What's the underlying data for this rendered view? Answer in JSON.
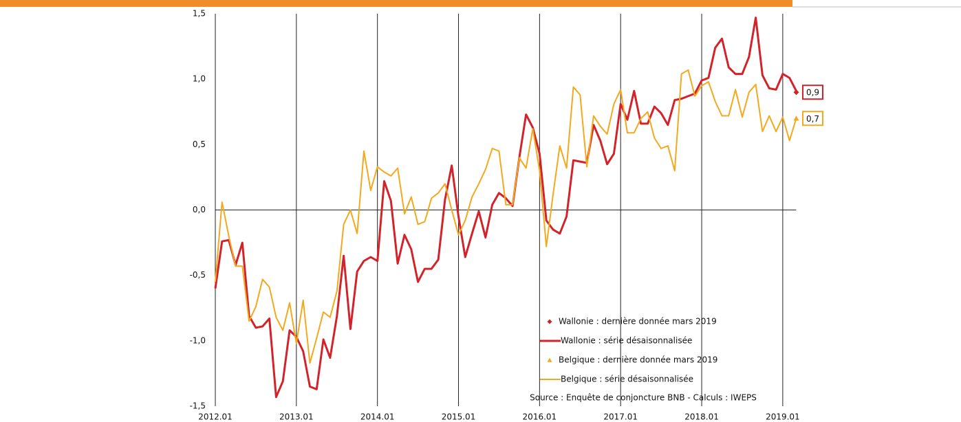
{
  "chart_data": {
    "type": "line",
    "source": "Source : Enquête de conjoncture BNB - Calculs : IWEPS",
    "categories": [
      "2012.01",
      null,
      null,
      null,
      null,
      null,
      null,
      null,
      null,
      null,
      null,
      null,
      "2013.01",
      null,
      null,
      null,
      null,
      null,
      null,
      null,
      null,
      null,
      null,
      null,
      "2014.01",
      null,
      null,
      null,
      null,
      null,
      null,
      null,
      null,
      null,
      null,
      null,
      "2015.01",
      null,
      null,
      null,
      null,
      null,
      null,
      null,
      null,
      null,
      null,
      null,
      "2016.01",
      null,
      null,
      null,
      null,
      null,
      null,
      null,
      null,
      null,
      null,
      null,
      "2017.01",
      null,
      null,
      null,
      null,
      null,
      null,
      null,
      null,
      null,
      null,
      null,
      "2018.01",
      null,
      null,
      null,
      null,
      null,
      null,
      null,
      null,
      null,
      null,
      null,
      "2019.01",
      null,
      null
    ],
    "series": [
      {
        "name": "Wallonie : série désaisonnalisée",
        "color": "#d2232a",
        "width": 3,
        "values": [
          -0.6,
          -0.24,
          -0.23,
          -0.42,
          -0.25,
          -0.81,
          -0.9,
          -0.89,
          -0.83,
          -1.43,
          -1.31,
          -0.92,
          -0.97,
          -1.08,
          -1.35,
          -1.37,
          -0.99,
          -1.13,
          -0.81,
          -0.35,
          -0.91,
          -0.47,
          -0.39,
          -0.36,
          -0.39,
          0.22,
          0.07,
          -0.41,
          -0.19,
          -0.3,
          -0.55,
          -0.45,
          -0.45,
          -0.38,
          0.08,
          0.34,
          -0.05,
          -0.36,
          -0.18,
          -0.01,
          -0.21,
          0.04,
          0.13,
          0.09,
          0.03,
          0.4,
          0.73,
          0.63,
          0.43,
          -0.08,
          -0.15,
          -0.18,
          -0.05,
          0.38,
          0.37,
          0.36,
          0.65,
          0.53,
          0.35,
          0.43,
          0.81,
          0.69,
          0.91,
          0.66,
          0.66,
          0.79,
          0.74,
          0.65,
          0.84,
          0.85,
          0.87,
          0.89,
          0.99,
          1.01,
          1.24,
          1.31,
          1.09,
          1.04,
          1.04,
          1.17,
          1.47,
          1.03,
          0.93,
          0.92,
          1.04,
          1.01,
          0.91
        ]
      },
      {
        "name": "Belgique : série désaisonnalisée",
        "color": "#f4a81c",
        "width": 2,
        "values": [
          -0.55,
          0.06,
          -0.2,
          -0.43,
          -0.43,
          -0.85,
          -0.74,
          -0.53,
          -0.59,
          -0.82,
          -0.92,
          -0.71,
          -1.02,
          -0.69,
          -1.17,
          -0.98,
          -0.78,
          -0.82,
          -0.62,
          -0.11,
          0.0,
          -0.18,
          0.45,
          0.15,
          0.33,
          0.29,
          0.26,
          0.32,
          -0.03,
          0.1,
          -0.11,
          -0.09,
          0.09,
          0.13,
          0.2,
          0.0,
          -0.19,
          -0.08,
          0.1,
          0.2,
          0.31,
          0.47,
          0.45,
          0.04,
          0.04,
          0.4,
          0.32,
          0.62,
          0.3,
          -0.28,
          0.12,
          0.49,
          0.32,
          0.94,
          0.88,
          0.33,
          0.72,
          0.64,
          0.58,
          0.81,
          0.92,
          0.59,
          0.59,
          0.7,
          0.75,
          0.55,
          0.47,
          0.49,
          0.3,
          1.04,
          1.07,
          0.87,
          0.95,
          0.98,
          0.83,
          0.72,
          0.72,
          0.92,
          0.71,
          0.9,
          0.96,
          0.6,
          0.72,
          0.6,
          0.71,
          0.53,
          0.7
        ]
      }
    ],
    "last_points": [
      {
        "name": "Wallonie : dernière donnée mars 2019",
        "color": "#d2232a",
        "marker": "diamond",
        "value": 0.9,
        "value_label": "0,9"
      },
      {
        "name": "Belgique : dernière donnée mars 2019",
        "color": "#f4a81c",
        "marker": "triangle",
        "value": 0.7,
        "value_label": "0,7"
      }
    ],
    "ylim": [
      -1.5,
      1.5
    ],
    "yticks": [
      {
        "value": -1.5,
        "label": "-1,5"
      },
      {
        "value": -1.0,
        "label": "-1,0"
      },
      {
        "value": -0.5,
        "label": "-0,5"
      },
      {
        "value": 0.0,
        "label": "0,0"
      },
      {
        "value": 0.5,
        "label": "0,5"
      },
      {
        "value": 1.0,
        "label": "1,0"
      },
      {
        "value": 1.5,
        "label": "1,5"
      }
    ],
    "grid": true
  }
}
